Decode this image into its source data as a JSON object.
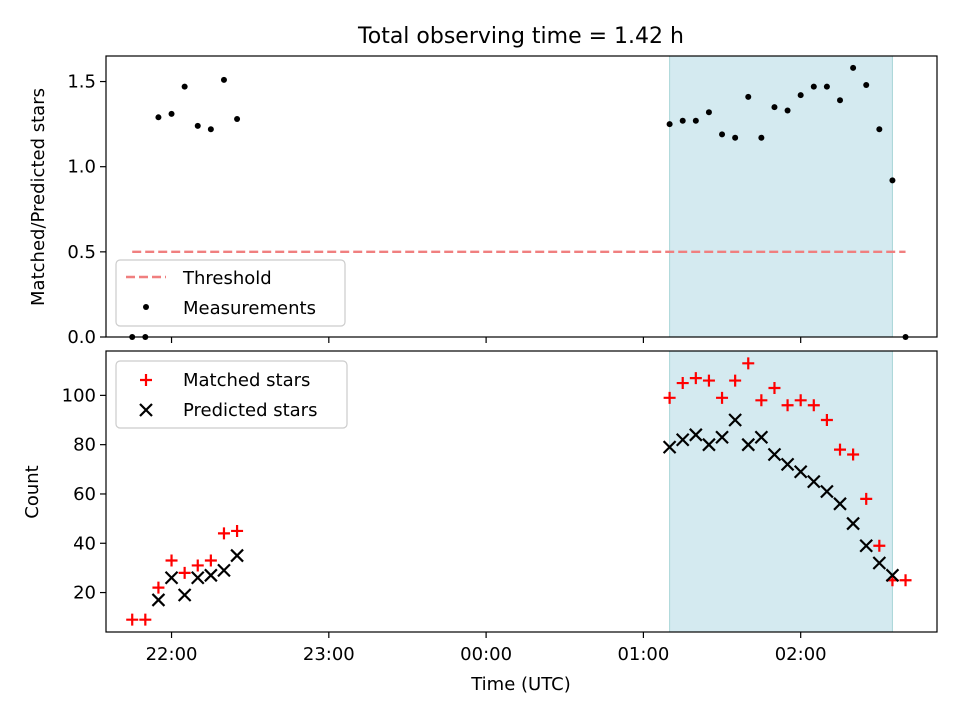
{
  "figure": {
    "title": "Total observing time = 1.42 h"
  },
  "chart_data": [
    {
      "type": "scatter",
      "title": "Total observing time = 1.42 h",
      "xlabel": "",
      "ylabel": "Matched/Predicted stars",
      "xlim": [
        "21:35",
        "02:52"
      ],
      "ylim": [
        0,
        1.65
      ],
      "yticks": [
        0.0,
        0.5,
        1.0,
        1.5
      ],
      "ytick_labels": [
        "0.0",
        "0.5",
        "1.0",
        "1.5"
      ],
      "x_ticks_no_labels": [
        "22:00",
        "23:00",
        "00:00",
        "01:00",
        "02:00"
      ],
      "shaded_span": {
        "from": "01:10",
        "to": "02:35",
        "color": "#d4eaf0"
      },
      "grid": false,
      "legend": {
        "position": "lower-left",
        "entries": [
          "Threshold",
          "Measurements"
        ]
      },
      "series": [
        {
          "name": "Threshold",
          "kind": "line",
          "color": "#f07f7f",
          "style": "dashed",
          "x": [
            "21:45",
            "02:40"
          ],
          "y": [
            0.5,
            0.5
          ]
        },
        {
          "name": "Measurements",
          "kind": "points",
          "color": "#000000",
          "x": [
            "21:45",
            "21:50",
            "21:55",
            "22:00",
            "22:05",
            "22:10",
            "22:15",
            "22:20",
            "22:25",
            "01:10",
            "01:15",
            "01:20",
            "01:25",
            "01:30",
            "01:35",
            "01:40",
            "01:45",
            "01:50",
            "01:55",
            "02:00",
            "02:05",
            "02:10",
            "02:15",
            "02:20",
            "02:25",
            "02:30",
            "02:35",
            "02:40"
          ],
          "y": [
            0.0,
            0.0,
            1.29,
            1.31,
            1.47,
            1.24,
            1.22,
            1.51,
            1.28,
            1.25,
            1.27,
            1.27,
            1.32,
            1.19,
            1.17,
            1.41,
            1.17,
            1.35,
            1.33,
            1.42,
            1.47,
            1.47,
            1.39,
            1.58,
            1.48,
            1.22,
            0.92,
            0.0
          ]
        }
      ]
    },
    {
      "type": "scatter",
      "xlabel": "Time (UTC)",
      "ylabel": "Count",
      "xlim": [
        "21:35",
        "02:52"
      ],
      "ylim": [
        4,
        118
      ],
      "yticks": [
        20,
        40,
        60,
        80,
        100
      ],
      "ytick_labels": [
        "20",
        "40",
        "60",
        "80",
        "100"
      ],
      "xticks": [
        "22:00",
        "23:00",
        "00:00",
        "01:00",
        "02:00"
      ],
      "xtick_labels": [
        "22:00",
        "23:00",
        "00:00",
        "01:00",
        "02:00"
      ],
      "shaded_span": {
        "from": "01:10",
        "to": "02:35",
        "color": "#d4eaf0"
      },
      "grid": false,
      "legend": {
        "position": "upper-left",
        "entries": [
          "Matched stars",
          "Predicted stars"
        ]
      },
      "series": [
        {
          "name": "Matched stars",
          "marker": "plus",
          "color": "#ff0000",
          "x": [
            "21:45",
            "21:50",
            "21:55",
            "22:00",
            "22:05",
            "22:10",
            "22:15",
            "22:20",
            "22:25",
            "01:10",
            "01:15",
            "01:20",
            "01:25",
            "01:30",
            "01:35",
            "01:40",
            "01:45",
            "01:50",
            "01:55",
            "02:00",
            "02:05",
            "02:10",
            "02:15",
            "02:20",
            "02:25",
            "02:30",
            "02:35",
            "02:40"
          ],
          "y": [
            9,
            9,
            22,
            33,
            28,
            31,
            33,
            44,
            45,
            99,
            105,
            107,
            106,
            99,
            106,
            113,
            98,
            103,
            96,
            98,
            96,
            90,
            78,
            76,
            58,
            39,
            25,
            25
          ]
        },
        {
          "name": "Predicted stars",
          "marker": "x",
          "color": "#000000",
          "x": [
            "21:55",
            "22:00",
            "22:05",
            "22:10",
            "22:15",
            "22:20",
            "22:25",
            "01:10",
            "01:15",
            "01:20",
            "01:25",
            "01:30",
            "01:35",
            "01:40",
            "01:45",
            "01:50",
            "01:55",
            "02:00",
            "02:05",
            "02:10",
            "02:15",
            "02:20",
            "02:25",
            "02:30",
            "02:35"
          ],
          "y": [
            17,
            26,
            19,
            26,
            27,
            29,
            35,
            79,
            82,
            84,
            80,
            83,
            90,
            80,
            83,
            76,
            72,
            69,
            65,
            61,
            56,
            48,
            39,
            32,
            27
          ]
        }
      ]
    }
  ]
}
